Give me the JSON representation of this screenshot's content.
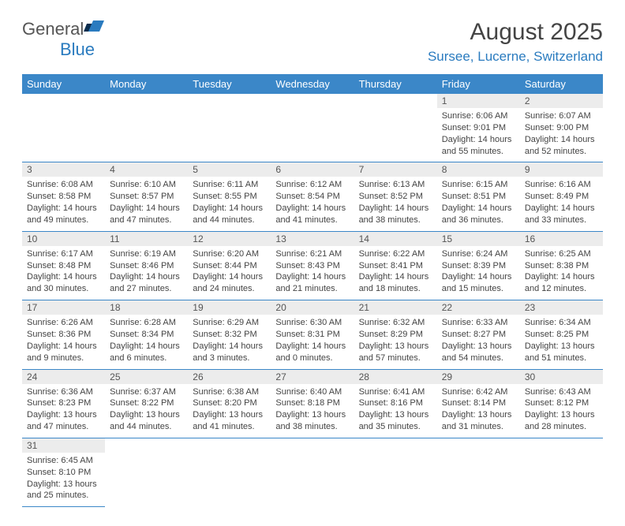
{
  "brand": {
    "name_part1": "General",
    "name_part2": "Blue",
    "logo_fill": "#2a7bbf"
  },
  "title": "August 2025",
  "location": "Sursee, Lucerne, Switzerland",
  "colors": {
    "header_bg": "#3b87c8",
    "header_text": "#ffffff",
    "daynum_bg": "#ececec",
    "border": "#3b87c8",
    "accent": "#2a7bbf"
  },
  "weekdays": [
    "Sunday",
    "Monday",
    "Tuesday",
    "Wednesday",
    "Thursday",
    "Friday",
    "Saturday"
  ],
  "weeks": [
    [
      null,
      null,
      null,
      null,
      null,
      {
        "n": "1",
        "sunrise": "Sunrise: 6:06 AM",
        "sunset": "Sunset: 9:01 PM",
        "daylight": "Daylight: 14 hours and 55 minutes."
      },
      {
        "n": "2",
        "sunrise": "Sunrise: 6:07 AM",
        "sunset": "Sunset: 9:00 PM",
        "daylight": "Daylight: 14 hours and 52 minutes."
      }
    ],
    [
      {
        "n": "3",
        "sunrise": "Sunrise: 6:08 AM",
        "sunset": "Sunset: 8:58 PM",
        "daylight": "Daylight: 14 hours and 49 minutes."
      },
      {
        "n": "4",
        "sunrise": "Sunrise: 6:10 AM",
        "sunset": "Sunset: 8:57 PM",
        "daylight": "Daylight: 14 hours and 47 minutes."
      },
      {
        "n": "5",
        "sunrise": "Sunrise: 6:11 AM",
        "sunset": "Sunset: 8:55 PM",
        "daylight": "Daylight: 14 hours and 44 minutes."
      },
      {
        "n": "6",
        "sunrise": "Sunrise: 6:12 AM",
        "sunset": "Sunset: 8:54 PM",
        "daylight": "Daylight: 14 hours and 41 minutes."
      },
      {
        "n": "7",
        "sunrise": "Sunrise: 6:13 AM",
        "sunset": "Sunset: 8:52 PM",
        "daylight": "Daylight: 14 hours and 38 minutes."
      },
      {
        "n": "8",
        "sunrise": "Sunrise: 6:15 AM",
        "sunset": "Sunset: 8:51 PM",
        "daylight": "Daylight: 14 hours and 36 minutes."
      },
      {
        "n": "9",
        "sunrise": "Sunrise: 6:16 AM",
        "sunset": "Sunset: 8:49 PM",
        "daylight": "Daylight: 14 hours and 33 minutes."
      }
    ],
    [
      {
        "n": "10",
        "sunrise": "Sunrise: 6:17 AM",
        "sunset": "Sunset: 8:48 PM",
        "daylight": "Daylight: 14 hours and 30 minutes."
      },
      {
        "n": "11",
        "sunrise": "Sunrise: 6:19 AM",
        "sunset": "Sunset: 8:46 PM",
        "daylight": "Daylight: 14 hours and 27 minutes."
      },
      {
        "n": "12",
        "sunrise": "Sunrise: 6:20 AM",
        "sunset": "Sunset: 8:44 PM",
        "daylight": "Daylight: 14 hours and 24 minutes."
      },
      {
        "n": "13",
        "sunrise": "Sunrise: 6:21 AM",
        "sunset": "Sunset: 8:43 PM",
        "daylight": "Daylight: 14 hours and 21 minutes."
      },
      {
        "n": "14",
        "sunrise": "Sunrise: 6:22 AM",
        "sunset": "Sunset: 8:41 PM",
        "daylight": "Daylight: 14 hours and 18 minutes."
      },
      {
        "n": "15",
        "sunrise": "Sunrise: 6:24 AM",
        "sunset": "Sunset: 8:39 PM",
        "daylight": "Daylight: 14 hours and 15 minutes."
      },
      {
        "n": "16",
        "sunrise": "Sunrise: 6:25 AM",
        "sunset": "Sunset: 8:38 PM",
        "daylight": "Daylight: 14 hours and 12 minutes."
      }
    ],
    [
      {
        "n": "17",
        "sunrise": "Sunrise: 6:26 AM",
        "sunset": "Sunset: 8:36 PM",
        "daylight": "Daylight: 14 hours and 9 minutes."
      },
      {
        "n": "18",
        "sunrise": "Sunrise: 6:28 AM",
        "sunset": "Sunset: 8:34 PM",
        "daylight": "Daylight: 14 hours and 6 minutes."
      },
      {
        "n": "19",
        "sunrise": "Sunrise: 6:29 AM",
        "sunset": "Sunset: 8:32 PM",
        "daylight": "Daylight: 14 hours and 3 minutes."
      },
      {
        "n": "20",
        "sunrise": "Sunrise: 6:30 AM",
        "sunset": "Sunset: 8:31 PM",
        "daylight": "Daylight: 14 hours and 0 minutes."
      },
      {
        "n": "21",
        "sunrise": "Sunrise: 6:32 AM",
        "sunset": "Sunset: 8:29 PM",
        "daylight": "Daylight: 13 hours and 57 minutes."
      },
      {
        "n": "22",
        "sunrise": "Sunrise: 6:33 AM",
        "sunset": "Sunset: 8:27 PM",
        "daylight": "Daylight: 13 hours and 54 minutes."
      },
      {
        "n": "23",
        "sunrise": "Sunrise: 6:34 AM",
        "sunset": "Sunset: 8:25 PM",
        "daylight": "Daylight: 13 hours and 51 minutes."
      }
    ],
    [
      {
        "n": "24",
        "sunrise": "Sunrise: 6:36 AM",
        "sunset": "Sunset: 8:23 PM",
        "daylight": "Daylight: 13 hours and 47 minutes."
      },
      {
        "n": "25",
        "sunrise": "Sunrise: 6:37 AM",
        "sunset": "Sunset: 8:22 PM",
        "daylight": "Daylight: 13 hours and 44 minutes."
      },
      {
        "n": "26",
        "sunrise": "Sunrise: 6:38 AM",
        "sunset": "Sunset: 8:20 PM",
        "daylight": "Daylight: 13 hours and 41 minutes."
      },
      {
        "n": "27",
        "sunrise": "Sunrise: 6:40 AM",
        "sunset": "Sunset: 8:18 PM",
        "daylight": "Daylight: 13 hours and 38 minutes."
      },
      {
        "n": "28",
        "sunrise": "Sunrise: 6:41 AM",
        "sunset": "Sunset: 8:16 PM",
        "daylight": "Daylight: 13 hours and 35 minutes."
      },
      {
        "n": "29",
        "sunrise": "Sunrise: 6:42 AM",
        "sunset": "Sunset: 8:14 PM",
        "daylight": "Daylight: 13 hours and 31 minutes."
      },
      {
        "n": "30",
        "sunrise": "Sunrise: 6:43 AM",
        "sunset": "Sunset: 8:12 PM",
        "daylight": "Daylight: 13 hours and 28 minutes."
      }
    ],
    [
      {
        "n": "31",
        "sunrise": "Sunrise: 6:45 AM",
        "sunset": "Sunset: 8:10 PM",
        "daylight": "Daylight: 13 hours and 25 minutes."
      },
      null,
      null,
      null,
      null,
      null,
      null
    ]
  ]
}
